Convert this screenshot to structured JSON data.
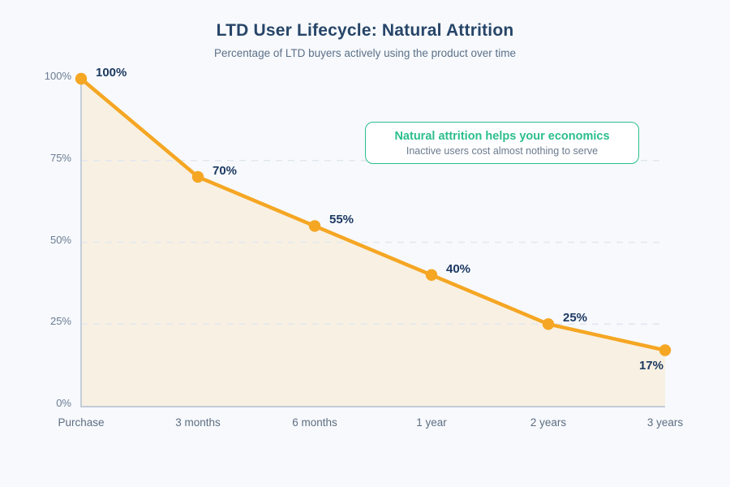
{
  "header": {
    "title": "LTD User Lifecycle: Natural Attrition",
    "subtitle": "Percentage of LTD buyers actively using the product over time"
  },
  "annotation": {
    "title": "Natural attrition helps your economics",
    "subtitle": "Inactive users cost almost nothing to serve"
  },
  "chart_data": {
    "type": "line",
    "title": "LTD User Lifecycle: Natural Attrition",
    "subtitle": "Percentage of LTD buyers actively using the product over time",
    "categories": [
      "Purchase",
      "3 months",
      "6 months",
      "1 year",
      "2 years",
      "3 years"
    ],
    "values": [
      100,
      70,
      55,
      40,
      25,
      17
    ],
    "point_labels": [
      "100%",
      "70%",
      "55%",
      "40%",
      "25%",
      "17%"
    ],
    "y_tick_values": [
      0,
      25,
      50,
      75,
      100
    ],
    "y_tick_labels": [
      "0%",
      "25%",
      "50%",
      "75%",
      "100%"
    ],
    "gridline_values": [
      25,
      50,
      75
    ],
    "ylim": [
      0,
      100
    ],
    "xlabel": "",
    "ylabel": "",
    "legend": "none",
    "grid": "dashed-horizontal",
    "area_fill": true,
    "colors": {
      "line": "#F5A623",
      "marker": "#F5A623",
      "area": "#F8F0E2",
      "data_label": "#1D3A63",
      "axis": "#C3CDDA",
      "gridline": "#E3E8EF",
      "y_tick_text": "#6B7C93",
      "x_tick_text": "#5E6E82",
      "title": "#274569",
      "subtitle": "#5C7189",
      "annotation_accent": "#2BBE8C",
      "background": "#F7F9FC"
    }
  }
}
